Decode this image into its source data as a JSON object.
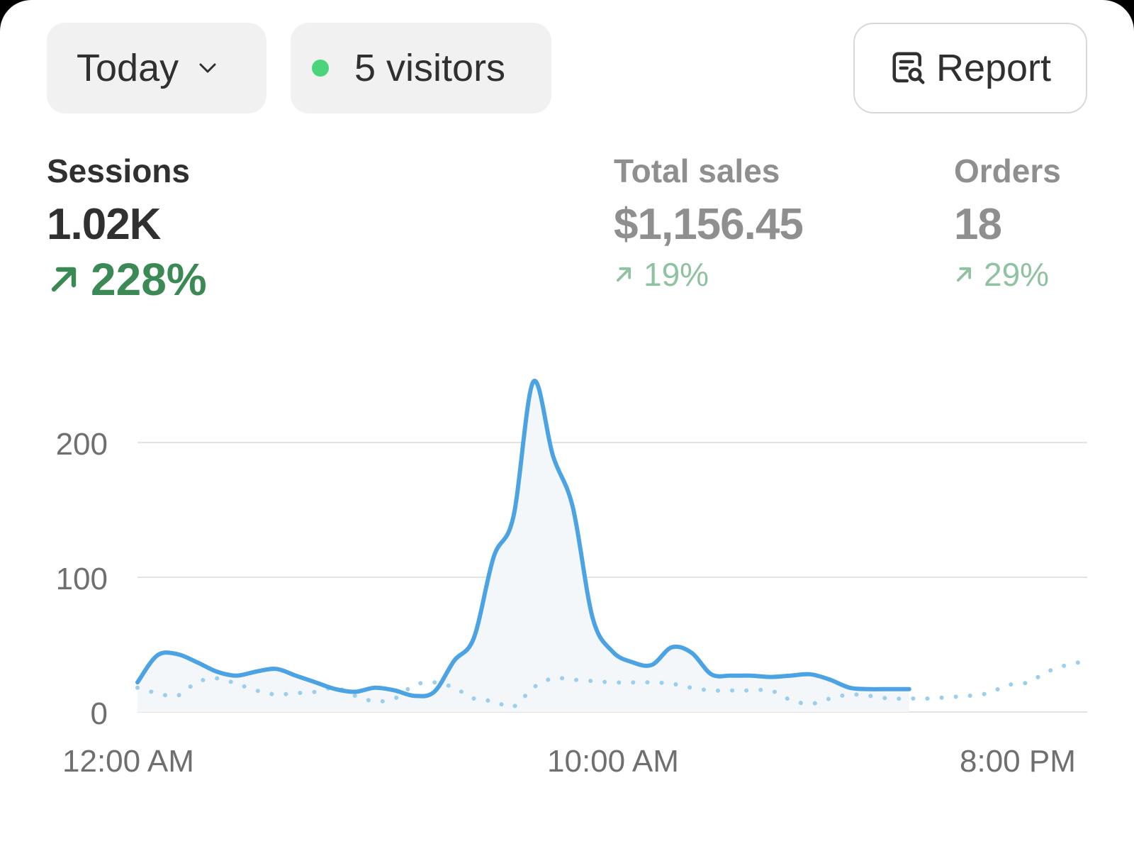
{
  "toolbar": {
    "date_range_label": "Today",
    "live_visitors_label": "5 visitors",
    "report_label": "Report"
  },
  "metrics": {
    "sessions": {
      "label": "Sessions",
      "value": "1.02K",
      "change": "228%"
    },
    "total_sales": {
      "label": "Total sales",
      "value": "$1,156.45",
      "change": "19%"
    },
    "orders": {
      "label": "Orders",
      "value": "18",
      "change": "29%"
    }
  },
  "colors": {
    "current_series": "#4ca3e3",
    "comparison_series": "#9ccfee",
    "positive_change": "#3b8a55",
    "live_dot": "#4bd47a"
  },
  "icons": {
    "date_dropdown": "chevron-down-icon",
    "live": "live-dot-icon",
    "report": "report-search-icon",
    "change": "arrow-up-right-icon"
  },
  "chart_data": {
    "type": "line",
    "xlabel": "",
    "ylabel": "",
    "xlim": [
      0,
      24
    ],
    "ylim": [
      0,
      260
    ],
    "yticks": [
      0,
      100,
      200
    ],
    "ytick_labels": [
      "0",
      "100",
      "200"
    ],
    "xticks": [
      0,
      10,
      20
    ],
    "xtick_labels": [
      "12:00 AM",
      "10:00 AM",
      "8:00 PM"
    ],
    "grid": true,
    "series": [
      {
        "style": "solid",
        "x": [
          0,
          0.5,
          1,
          1.5,
          2,
          2.5,
          3,
          3.5,
          4,
          4.5,
          5,
          5.5,
          6,
          6.5,
          7,
          7.5,
          8,
          8.5,
          9,
          9.5,
          10,
          10.5,
          11,
          11.5,
          12,
          12.5,
          13,
          13.5,
          14,
          14.5,
          15,
          15.5,
          16,
          16.5,
          17,
          17.5,
          18,
          18.5,
          19,
          19.5
        ],
        "values": [
          22,
          42,
          43,
          37,
          30,
          27,
          30,
          32,
          27,
          22,
          17,
          15,
          18,
          16,
          12,
          15,
          38,
          55,
          115,
          145,
          245,
          190,
          152,
          70,
          45,
          37,
          35,
          48,
          44,
          28,
          27,
          27,
          26,
          27,
          28,
          24,
          18,
          17,
          17,
          17
        ]
      },
      {
        "style": "dotted",
        "x": [
          0,
          0.5,
          1,
          1.5,
          2,
          2.5,
          3,
          3.5,
          4,
          4.5,
          5,
          5.5,
          6,
          6.5,
          7,
          7.5,
          8,
          8.5,
          9,
          9.5,
          10,
          10.5,
          11,
          11.5,
          12,
          12.5,
          13,
          13.5,
          14,
          14.5,
          15,
          15.5,
          16,
          16.5,
          17,
          17.5,
          18,
          18.5,
          19,
          19.5,
          20,
          20.5,
          21,
          21.5,
          22,
          22.5,
          23,
          23.5,
          24
        ],
        "values": [
          18,
          14,
          12,
          22,
          25,
          21,
          16,
          13,
          14,
          15,
          18,
          12,
          8,
          10,
          20,
          22,
          18,
          10,
          8,
          4,
          18,
          25,
          24,
          23,
          22,
          22,
          22,
          21,
          18,
          16,
          16,
          16,
          16,
          9,
          6,
          10,
          13,
          12,
          10,
          10,
          10,
          11,
          12,
          14,
          20,
          22,
          30,
          35,
          38
        ]
      }
    ]
  }
}
